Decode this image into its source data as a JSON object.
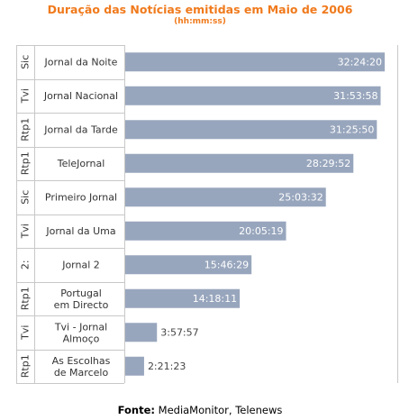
{
  "title": "Duração das Notícias emitidas em Maio de 2006",
  "subtitle": "(hh:mm:ss)",
  "footer": {
    "label": "Fonte:",
    "source": "MediaMonitor, Telenews"
  },
  "colors": {
    "bar": "#98a6bd",
    "title": "#f07a1c",
    "grid": "#c8c8c8"
  },
  "chart_data": {
    "type": "bar",
    "orientation": "horizontal",
    "title": "Duração das Notícias emitidas em Maio de 2006",
    "subtitle": "(hh:mm:ss)",
    "channels": [
      "Sic",
      "Tvi",
      "Rtp1",
      "Rtp1",
      "Sic",
      "Tvi",
      "2:",
      "Rtp1",
      "Tvi",
      "Rtp1"
    ],
    "categories": [
      "Jornal da Noite",
      "Jornal Nacional",
      "Jornal da Tarde",
      "TeleJornal",
      "Primeiro Jornal",
      "Jornal da Uma",
      "Jornal 2",
      "Portugal em Directo",
      "Tvi - Jornal Almoço",
      "As Escolhas de Marcelo"
    ],
    "labels": [
      "32:24:20",
      "31:53:58",
      "31:25:50",
      "28:29:52",
      "25:03:32",
      "20:05:19",
      "15:46:29",
      "14:18:11",
      "3:57:57",
      "2:21:23"
    ],
    "values_hours": [
      32.406,
      31.899,
      31.431,
      28.498,
      25.059,
      20.089,
      15.775,
      14.303,
      3.966,
      2.356
    ]
  }
}
